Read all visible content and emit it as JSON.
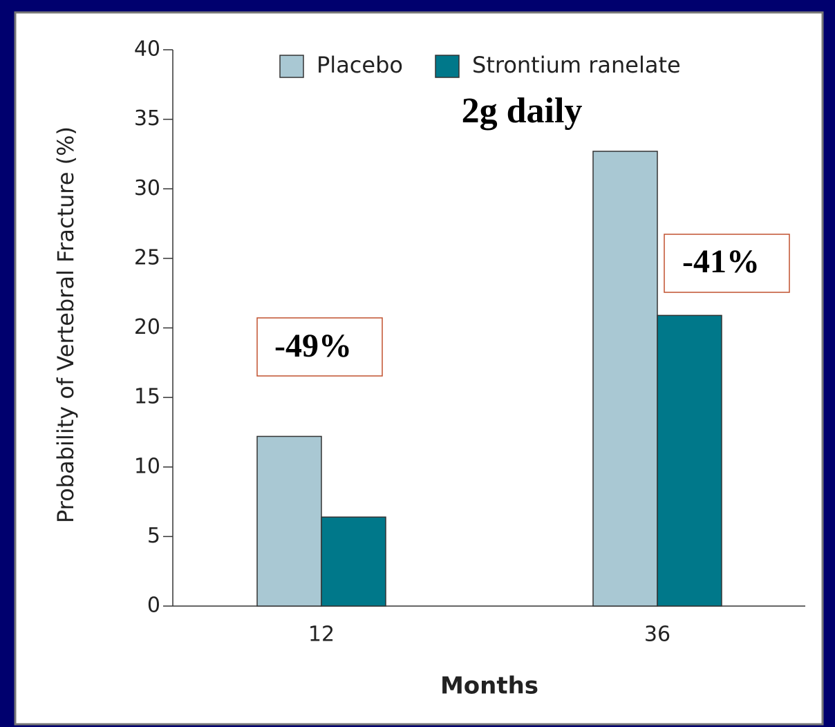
{
  "chart_data": {
    "type": "bar",
    "categories": [
      "12",
      "36"
    ],
    "series": [
      {
        "name": "Placebo",
        "color": "#a9c8d3",
        "values": [
          12.2,
          32.7
        ]
      },
      {
        "name": "Strontium ranelate",
        "color": "#00788a",
        "values": [
          6.4,
          20.9
        ]
      }
    ],
    "ylim": [
      0,
      40
    ],
    "yticks": [
      0,
      5,
      10,
      15,
      20,
      25,
      30,
      35,
      40
    ],
    "ylabel": "Probability of Vertebral Fracture (%)",
    "xlabel": "Months",
    "annotations": [
      "2g daily",
      "-49%",
      "-41%"
    ]
  }
}
